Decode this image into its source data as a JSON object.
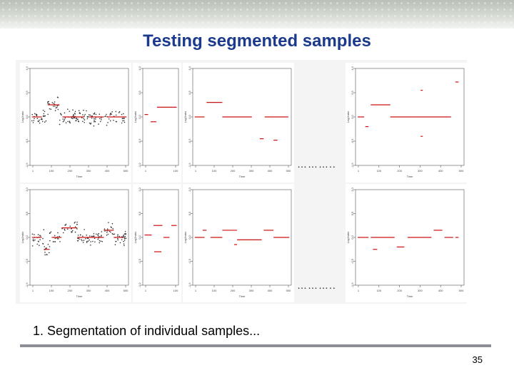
{
  "slide": {
    "title": "Testing segmented samples",
    "caption": "1. Segmentation of individual samples...",
    "page_number": "35",
    "separator_1": "………..",
    "separator_2": "………..",
    "colors": {
      "title": "#1b3a8c",
      "segment": "#cc1111",
      "point": "#333333",
      "rule": "#8c8f95"
    }
  },
  "plot_text": {
    "y_axis_label": "Log2ratio",
    "x_axis_label": "Time",
    "y_ticks": [
      "1.0",
      "0.5",
      "0.0",
      "-0.5",
      "-1.0"
    ],
    "x_ticks_wide": [
      "1",
      "100",
      "200",
      "300",
      "400",
      "500"
    ],
    "x_ticks_narrow": [
      "1",
      "100"
    ]
  }
}
